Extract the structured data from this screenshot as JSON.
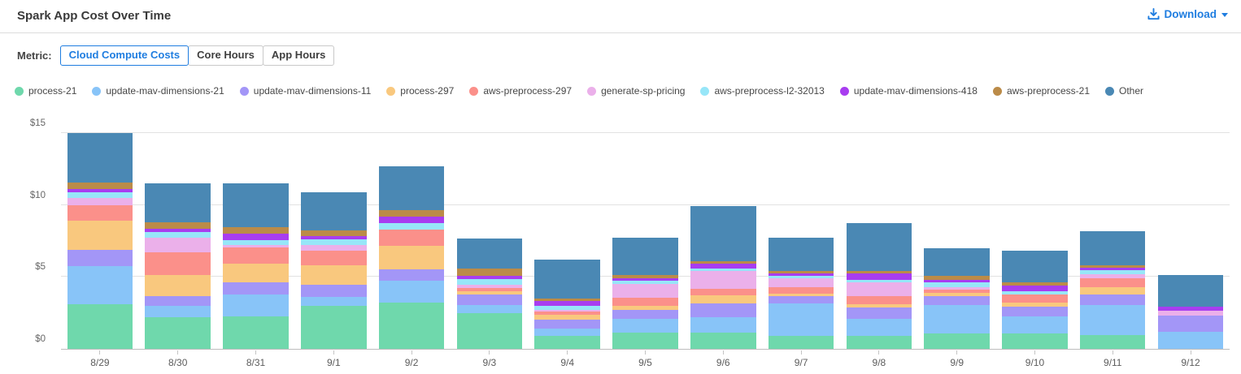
{
  "header": {
    "title": "Spark App Cost Over Time",
    "download_label": "Download"
  },
  "metric": {
    "label": "Metric:",
    "options": [
      {
        "label": "Cloud Compute Costs",
        "selected": true
      },
      {
        "label": "Core Hours",
        "selected": false
      },
      {
        "label": "App Hours",
        "selected": false
      }
    ]
  },
  "colors": {
    "accent": "#1f7de0",
    "axis_text": "#666666",
    "gridline": "#e2e2e2"
  },
  "chart_data": {
    "type": "bar",
    "stacked": true,
    "title": "Spark App Cost Over Time",
    "xlabel": "",
    "ylabel": "",
    "ylim": [
      0,
      15
    ],
    "yticks": [
      0,
      5,
      10,
      15
    ],
    "ytick_prefix": "$",
    "grid": true,
    "legend_position": "top",
    "categories": [
      "8/29",
      "8/30",
      "8/31",
      "9/1",
      "9/2",
      "9/3",
      "9/4",
      "9/5",
      "9/6",
      "9/7",
      "9/8",
      "9/9",
      "9/10",
      "9/11",
      "9/12"
    ],
    "series": [
      {
        "name": "process-21",
        "color": "#6fd8ac",
        "values": [
          3.1,
          2.19,
          2.25,
          2.98,
          3.2,
          2.47,
          0.88,
          1.12,
          1.12,
          0.9,
          0.9,
          1.07,
          1.07,
          0.96,
          0
        ]
      },
      {
        "name": "update-mav-dimensions-21",
        "color": "#88c4f8",
        "values": [
          2.65,
          0.79,
          1.51,
          0.62,
          1.52,
          0.56,
          0.52,
          0.96,
          1.07,
          2.25,
          1.18,
          1.97,
          1.18,
          2.07,
          1.18
        ]
      },
      {
        "name": "update-mav-dimensions-11",
        "color": "#a396f7",
        "values": [
          1.13,
          0.67,
          0.85,
          0.84,
          0.79,
          0.73,
          0.64,
          0.62,
          0.96,
          0.5,
          0.79,
          0.64,
          0.67,
          0.73,
          1.12
        ]
      },
      {
        "name": "process-297",
        "color": "#f9c87e",
        "values": [
          2.03,
          1.46,
          1.29,
          1.35,
          1.68,
          0.23,
          0.32,
          0.28,
          0.56,
          0.17,
          0.22,
          0.19,
          0.28,
          0.51,
          0
        ]
      },
      {
        "name": "aws-preprocess-297",
        "color": "#fb908a",
        "values": [
          1.07,
          1.58,
          1.12,
          1.06,
          1.12,
          0.22,
          0.22,
          0.56,
          0.45,
          0.45,
          0.56,
          0.24,
          0.56,
          0.62,
          0
        ]
      },
      {
        "name": "generate-sp-pricing",
        "color": "#ebb0ea",
        "values": [
          0.51,
          1.06,
          0.17,
          0.4,
          0,
          0.23,
          0.15,
          0.95,
          1.23,
          0.62,
          1.0,
          0.17,
          0,
          0.33,
          0.34
        ]
      },
      {
        "name": "aws-preprocess-l2-32013",
        "color": "#97e6f8",
        "values": [
          0.39,
          0.4,
          0.39,
          0.39,
          0.45,
          0.39,
          0.24,
          0.23,
          0.17,
          0.17,
          0.17,
          0.34,
          0.23,
          0.23,
          0
        ]
      },
      {
        "name": "update-mav-dimensions-418",
        "color": "#a83df0",
        "values": [
          0.23,
          0.22,
          0.4,
          0.23,
          0.45,
          0.23,
          0.34,
          0.17,
          0.34,
          0.16,
          0.45,
          0.17,
          0.39,
          0.17,
          0.28
        ]
      },
      {
        "name": "aws-preprocess-21",
        "color": "#bb8b48",
        "values": [
          0.45,
          0.45,
          0.45,
          0.39,
          0.45,
          0.5,
          0.17,
          0.22,
          0.22,
          0.17,
          0.17,
          0.28,
          0.23,
          0.22,
          0
        ]
      },
      {
        "name": "Other",
        "color": "#4a88b4",
        "values": [
          3.44,
          2.7,
          3.09,
          2.64,
          3.04,
          2.14,
          2.7,
          2.64,
          3.82,
          2.36,
          3.32,
          1.95,
          2.24,
          2.36,
          2.19
        ]
      }
    ]
  }
}
